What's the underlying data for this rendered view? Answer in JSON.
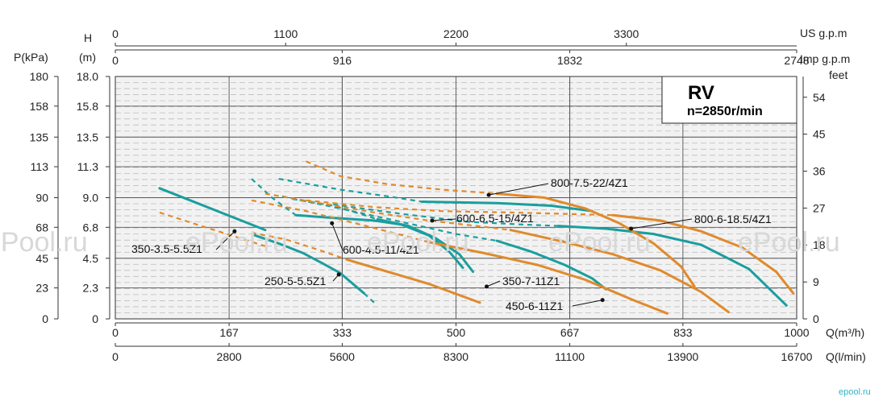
{
  "chart_data": {
    "type": "line",
    "title": "RV",
    "subtitle": "n=2850r/min",
    "xlabel": "Q(m³/h)",
    "xlabel2": "Q(l/min)",
    "ylabel_left_p": "P(kPa)",
    "ylabel_left_h_line1": "H",
    "ylabel_left_h_line2": "(m)",
    "ylabel_right": "feet",
    "top_label_us": "US g.p.m",
    "top_label_imp": "Imp g.p.m",
    "xlim": [
      0,
      1000
    ],
    "ylim": [
      0,
      18
    ],
    "grid": true,
    "axes": {
      "x_m3h": {
        "ticks": [
          0,
          167,
          333,
          500,
          667,
          833,
          1000
        ],
        "labels": [
          "0",
          "167",
          "333",
          "500",
          "667",
          "833",
          "1000"
        ]
      },
      "x_lmin": {
        "ticks": [
          0,
          167,
          333,
          500,
          667,
          833,
          1000
        ],
        "labels": [
          "0",
          "2800",
          "5600",
          "8300",
          "11100",
          "13900",
          "16700"
        ]
      },
      "us_gpm": {
        "ticks": [
          0,
          250,
          500,
          750
        ],
        "labels": [
          "0",
          "1100",
          "2200",
          "3300"
        ]
      },
      "imp_gpm": {
        "ticks": [
          0,
          333,
          667,
          1000
        ],
        "labels": [
          "0",
          "916",
          "1832",
          "2748"
        ]
      },
      "h_m": {
        "ticks": [
          0,
          2.3,
          4.5,
          6.8,
          9.0,
          11.3,
          13.5,
          15.8,
          18.0
        ],
        "labels": [
          "0",
          "2.3",
          "4.5",
          "6.8",
          "9.0",
          "11.3",
          "13.5",
          "15.8",
          "18.0"
        ]
      },
      "p_kpa": {
        "ticks": [
          0,
          2.3,
          4.5,
          6.8,
          9.0,
          11.3,
          13.5,
          15.8,
          18.0
        ],
        "labels": [
          "0",
          "23",
          "45",
          "68",
          "90",
          "113",
          "135",
          "158",
          "180"
        ]
      },
      "feet": {
        "ticks": [
          0,
          2.74,
          5.49,
          8.23,
          10.97,
          13.72,
          16.46
        ],
        "labels": [
          "0",
          "9",
          "18",
          "27",
          "36",
          "45",
          "54"
        ]
      }
    },
    "series": [
      {
        "name": "350-3.5-5.5Z1",
        "color": "#1a9e9e",
        "points": [
          [
            65,
            9.7
          ],
          [
            120,
            8.6
          ],
          [
            170,
            7.6
          ],
          [
            220,
            6.6
          ]
        ],
        "dashed": [
          [
            65,
            9.7
          ],
          [
            120,
            8.6
          ],
          [
            170,
            7.6
          ],
          [
            220,
            6.6
          ]
        ]
      },
      {
        "name": "250-5-5.5Z1",
        "color": "#1a9e9e",
        "points": [
          [
            205,
            6.2
          ],
          [
            240,
            5.6
          ],
          [
            275,
            4.9
          ],
          [
            305,
            4.1
          ],
          [
            330,
            3.4
          ],
          [
            365,
            1.9
          ]
        ],
        "dashed": [
          [
            365,
            1.9
          ],
          [
            380,
            1.2
          ]
        ]
      },
      {
        "name": "600-4.5-11/4Z1",
        "color": "#1a9e9e",
        "points": [
          [
            265,
            7.7
          ],
          [
            320,
            7.5
          ],
          [
            380,
            7.3
          ],
          [
            420,
            7.0
          ],
          [
            460,
            6.2
          ],
          [
            490,
            5.0
          ],
          [
            510,
            3.8
          ]
        ],
        "dashed": [
          [
            200,
            10.4
          ],
          [
            230,
            9.0
          ],
          [
            265,
            7.7
          ]
        ]
      },
      {
        "name": "350-7-11Z1",
        "color": "#1a9e9e",
        "points": [
          [
            385,
            7.4
          ],
          [
            430,
            6.9
          ],
          [
            470,
            6.0
          ],
          [
            505,
            4.8
          ],
          [
            525,
            3.5
          ]
        ],
        "dashed": [
          [
            260,
            8.9
          ],
          [
            320,
            8.4
          ],
          [
            385,
            7.4
          ]
        ]
      },
      {
        "name": "450-6-11Z1",
        "color": "#1a9e9e",
        "points": [
          [
            560,
            5.8
          ],
          [
            610,
            5.0
          ],
          [
            660,
            4.0
          ],
          [
            700,
            3.0
          ],
          [
            720,
            2.2
          ]
        ],
        "dashed": [
          [
            245,
            9.1
          ],
          [
            330,
            8.2
          ],
          [
            420,
            7.2
          ],
          [
            500,
            6.3
          ],
          [
            560,
            5.8
          ]
        ]
      },
      {
        "name": "600-6.5-15/4Z1",
        "color": "#1a9e9e",
        "points": [
          [
            650,
            6.9
          ],
          [
            720,
            6.7
          ],
          [
            790,
            6.3
          ],
          [
            860,
            5.5
          ],
          [
            930,
            3.7
          ],
          [
            985,
            1.0
          ]
        ],
        "dashed": [
          [
            320,
            8.5
          ],
          [
            420,
            7.8
          ],
          [
            520,
            7.2
          ],
          [
            600,
            7.0
          ],
          [
            650,
            6.9
          ]
        ]
      },
      {
        "name": "800-7.5-22/4Z1",
        "color": "#1a9e9e",
        "points": [
          [
            450,
            8.7
          ],
          [
            560,
            8.6
          ],
          [
            640,
            8.4
          ],
          [
            700,
            8.0
          ]
        ],
        "dashed": [
          [
            240,
            10.4
          ],
          [
            330,
            9.6
          ],
          [
            400,
            9.1
          ],
          [
            450,
            8.7
          ]
        ]
      },
      {
        "name": "350-3.5-5.5Z1 (orange)",
        "color": "#e08a2c",
        "points": [],
        "dashed": [
          [
            65,
            7.9
          ],
          [
            120,
            7.0
          ],
          [
            170,
            6.2
          ],
          [
            220,
            5.4
          ]
        ]
      },
      {
        "name": "250-5-5.5Z1 (orange)",
        "color": "#e08a2c",
        "points": [
          [
            340,
            4.4
          ],
          [
            400,
            3.5
          ],
          [
            460,
            2.6
          ],
          [
            535,
            1.2
          ]
        ],
        "dashed": [
          [
            200,
            6.4
          ],
          [
            250,
            5.9
          ],
          [
            300,
            5.1
          ],
          [
            340,
            4.4
          ]
        ]
      },
      {
        "name": "600-4.5-11/4Z1 (orange)",
        "color": "#e08a2c",
        "points": [
          [
            460,
            5.7
          ],
          [
            540,
            4.9
          ],
          [
            620,
            4.0
          ],
          [
            690,
            2.9
          ],
          [
            760,
            1.4
          ],
          [
            810,
            0.4
          ]
        ],
        "dashed": [
          [
            200,
            8.8
          ],
          [
            280,
            8.0
          ],
          [
            360,
            7.0
          ],
          [
            430,
            6.1
          ],
          [
            460,
            5.7
          ]
        ]
      },
      {
        "name": "350-7-11Z1 (orange)",
        "color": "#e08a2c",
        "points": [
          [
            580,
            6.6
          ],
          [
            660,
            5.7
          ],
          [
            730,
            4.8
          ],
          [
            800,
            3.6
          ],
          [
            860,
            2.0
          ],
          [
            900,
            0.5
          ]
        ],
        "dashed": [
          [
            220,
            9.3
          ],
          [
            300,
            8.6
          ],
          [
            380,
            7.9
          ],
          [
            460,
            7.3
          ],
          [
            530,
            6.9
          ],
          [
            580,
            6.6
          ]
        ]
      },
      {
        "name": "800-6-18.5/4Z1",
        "color": "#e08a2c",
        "points": [
          [
            730,
            7.7
          ],
          [
            800,
            7.3
          ],
          [
            860,
            6.5
          ],
          [
            920,
            5.3
          ],
          [
            970,
            3.5
          ],
          [
            995,
            1.9
          ]
        ],
        "dashed": [
          [
            280,
            8.8
          ],
          [
            380,
            8.3
          ],
          [
            480,
            8.0
          ],
          [
            580,
            7.9
          ],
          [
            660,
            7.8
          ],
          [
            730,
            7.7
          ]
        ]
      },
      {
        "name": "800-7.5-22/4Z1 (orange)",
        "color": "#e08a2c",
        "points": [
          [
            560,
            9.3
          ],
          [
            630,
            9.0
          ],
          [
            690,
            8.2
          ],
          [
            740,
            7.1
          ],
          [
            790,
            5.6
          ],
          [
            830,
            3.9
          ],
          [
            850,
            2.4
          ]
        ],
        "dashed": [
          [
            280,
            11.7
          ],
          [
            330,
            10.6
          ],
          [
            400,
            10.0
          ],
          [
            480,
            9.6
          ],
          [
            560,
            9.3
          ]
        ]
      }
    ],
    "annotations": [
      {
        "label": "800-7.5-22/4Z1",
        "at": [
          548,
          9.2
        ]
      },
      {
        "label": "600-6.5-15/4Z1",
        "at": [
          465,
          7.3
        ]
      },
      {
        "label": "800-6-18.5/4Z1",
        "at": [
          757,
          6.7
        ]
      },
      {
        "label": "350-3.5-5.5Z1",
        "at": [
          175,
          6.5
        ]
      },
      {
        "label": "600-4.5-11/4Z1",
        "at": [
          318,
          7.1
        ]
      },
      {
        "label": "250-5-5.5Z1",
        "at": [
          328,
          3.3
        ]
      },
      {
        "label": "350-7-11Z1",
        "at": [
          545,
          2.4
        ]
      },
      {
        "label": "450-6-11Z1",
        "at": [
          715,
          1.4
        ]
      }
    ]
  },
  "watermark": "ePool.ru",
  "corner_logo": "epool.ru"
}
